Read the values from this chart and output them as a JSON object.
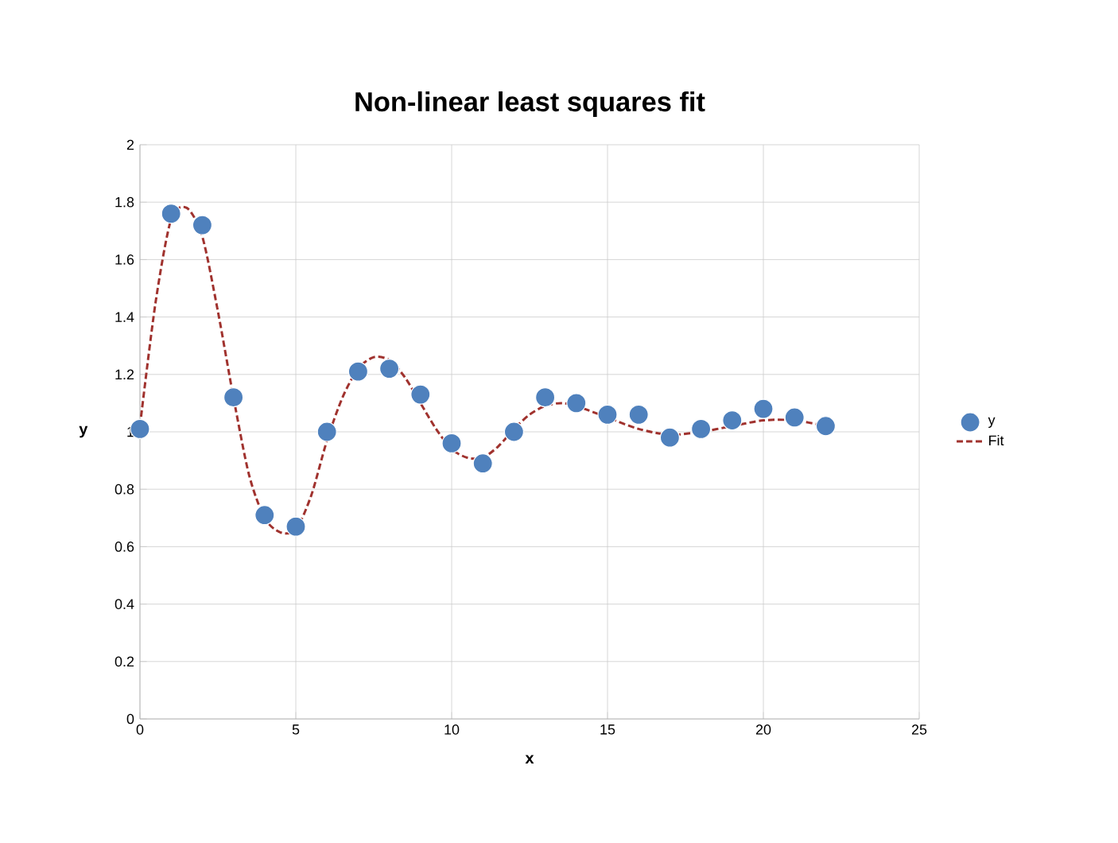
{
  "chart_data": {
    "type": "scatter",
    "title": "Non-linear least squares fit",
    "xlabel": "x",
    "ylabel": "y",
    "xlim": [
      0,
      25
    ],
    "xticks": [
      0,
      5,
      10,
      15,
      20,
      25
    ],
    "ylim": [
      0,
      2
    ],
    "yticks": [
      0,
      0.2,
      0.4,
      0.6,
      0.8,
      1,
      1.2,
      1.4,
      1.6,
      1.8,
      2
    ],
    "grid": true,
    "legend": "right",
    "series": [
      {
        "name": "y",
        "marker": "circle",
        "color": "#4f81bd",
        "x": [
          0,
          1,
          2,
          3,
          4,
          5,
          6,
          7,
          8,
          9,
          10,
          11,
          12,
          13,
          14,
          15,
          16,
          17,
          18,
          19,
          20,
          21,
          22
        ],
        "values": [
          1.01,
          1.76,
          1.72,
          1.12,
          0.71,
          0.67,
          1.0,
          1.21,
          1.22,
          1.13,
          0.96,
          0.89,
          1.0,
          1.12,
          1.1,
          1.06,
          1.06,
          0.98,
          1.01,
          1.04,
          1.08,
          1.05,
          1.02
        ]
      },
      {
        "name": "Fit",
        "type": "line",
        "marker": "none",
        "line_style": "dashed",
        "color": "#a0322e",
        "x": [
          0,
          0.5,
          1,
          1.5,
          2,
          2.5,
          3,
          3.5,
          4,
          4.5,
          5,
          5.5,
          6,
          6.5,
          7,
          7.5,
          8,
          8.5,
          9,
          9.5,
          10,
          10.5,
          11,
          11.5,
          12,
          12.5,
          13,
          13.5,
          14,
          15,
          16,
          17,
          18,
          19,
          20,
          21,
          22
        ],
        "values": [
          1.02,
          1.45,
          1.74,
          1.78,
          1.68,
          1.42,
          1.12,
          0.85,
          0.7,
          0.65,
          0.66,
          0.78,
          0.97,
          1.12,
          1.22,
          1.26,
          1.25,
          1.19,
          1.1,
          1.01,
          0.94,
          0.91,
          0.91,
          0.95,
          1.01,
          1.06,
          1.09,
          1.1,
          1.09,
          1.05,
          1.01,
          0.99,
          1.0,
          1.02,
          1.04,
          1.04,
          1.02
        ]
      }
    ]
  }
}
